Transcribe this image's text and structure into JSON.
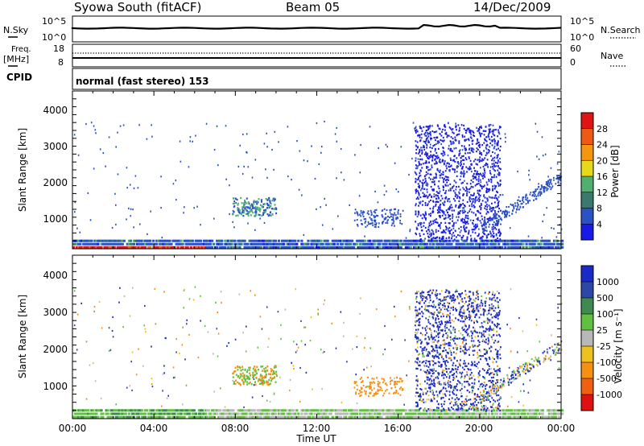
{
  "header": {
    "station": "Syowa South (fitACF)",
    "beam": "Beam 05",
    "date": "14/Dec/2009"
  },
  "top_panel": {
    "left_label": "N.Sky",
    "right_label": "N.Search",
    "left_ticks": [
      "10^5",
      "10^0"
    ],
    "right_ticks": [
      "10^5",
      "10^0"
    ]
  },
  "freq_panel": {
    "left_label_line1": "Freq.",
    "left_label_line2": "[MHz]",
    "right_label": "Nave",
    "left_ticks": [
      "18",
      "8"
    ],
    "right_ticks": [
      "60",
      "0"
    ]
  },
  "cpid": {
    "label": "CPID",
    "mode": "normal (fast stereo) 153"
  },
  "chart_data": [
    {
      "type": "heatmap",
      "name": "power",
      "ylabel": "Slant Range [km]",
      "yticks": [
        "1000",
        "2000",
        "3000",
        "4000"
      ],
      "ylim": [
        180,
        4500
      ],
      "colorbar": {
        "label": "Power [dB]",
        "ticks": [
          "4",
          "8",
          "12",
          "16",
          "20",
          "24",
          "28"
        ],
        "colors": [
          "#1a1ae6",
          "#2b52c4",
          "#3a7a6e",
          "#4fb070",
          "#e8d81a",
          "#f5960f",
          "#ee5a14",
          "#e01414"
        ]
      }
    },
    {
      "type": "heatmap",
      "name": "velocity",
      "ylabel": "Slant Range [km]",
      "yticks": [
        "1000",
        "2000",
        "3000",
        "4000"
      ],
      "ylim": [
        180,
        4500
      ],
      "colorbar": {
        "label": "Velocity [m s⁻¹]",
        "ticks": [
          "1000",
          "500",
          "100",
          "25",
          "-25",
          "-100",
          "-500",
          "-1000"
        ],
        "colors": [
          "#1a2ac8",
          "#2e46a8",
          "#3e8a50",
          "#60c040",
          "#b8b8b8",
          "#f0c020",
          "#f59010",
          "#f06010",
          "#e01010"
        ]
      }
    }
  ],
  "xaxis": {
    "label": "Time UT",
    "ticks": [
      "00:00",
      "04:00",
      "08:00",
      "12:00",
      "16:00",
      "20:00",
      "00:00"
    ]
  }
}
